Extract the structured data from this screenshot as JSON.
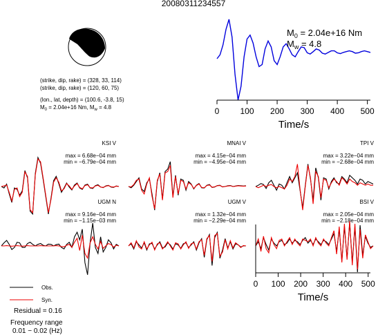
{
  "title": "20080311234557",
  "focal_info": {
    "line1": "(strike, dip, rake) = (328, 33, 114)",
    "line2": "(strike, dip, rake) = (120, 60, 75)",
    "line3": "(lon., lat, depth) = (100.6, -3.8, 15)",
    "m0_prefix": "M",
    "m0_sub": "0",
    "m0_value": " = 2.04e+16 Nm, M",
    "mw_sub": "w",
    "mw_value": " = 4.8"
  },
  "stf_labels": {
    "m0_prefix": "M",
    "m0_sub": "0",
    "m0_value": " = 2.04e+16 Nm",
    "mw_prefix": "M",
    "mw_sub": "w",
    "mw_value": " = 4.8"
  },
  "legend": {
    "obs": "Obs.",
    "syn": "Syn.",
    "residual": "Residual = 0.16",
    "freq_label": "Frequency range",
    "freq_value": "0.01 − 0.02 (Hz)"
  },
  "colors": {
    "observed": "#000000",
    "synthetic": "#ee0000",
    "source_time_function": "#0000dd",
    "beachball_fill": "#000000"
  },
  "chart_data": [
    {
      "type": "line",
      "title": "",
      "xlabel": "Time/s",
      "ylabel": "",
      "xlim": [
        0,
        510
      ],
      "x_ticks": [
        "0",
        "100",
        "200",
        "300",
        "400",
        "500"
      ],
      "grid": false,
      "series": [
        {
          "x": [
            0,
            10,
            20,
            30,
            40,
            50,
            60,
            70,
            80,
            90,
            100,
            110,
            120,
            130,
            140,
            150,
            160,
            170,
            180,
            190,
            200,
            210,
            220,
            230,
            240,
            250,
            260,
            270,
            280,
            290,
            300,
            310,
            320,
            330,
            340,
            350,
            360,
            370,
            380,
            390,
            400,
            410,
            420,
            430,
            440,
            450,
            460,
            470,
            480,
            490,
            500,
            510
          ],
          "values": [
            0.0,
            0.1,
            0.35,
            0.75,
            1.0,
            0.55,
            -0.4,
            -1.05,
            -0.7,
            0.05,
            0.5,
            0.6,
            0.4,
            0.05,
            -0.2,
            -0.15,
            0.25,
            0.45,
            0.3,
            -0.05,
            -0.15,
            0.05,
            0.3,
            0.38,
            0.25,
            0.1,
            0.05,
            0.18,
            0.3,
            0.28,
            0.15,
            0.12,
            0.18,
            0.25,
            0.22,
            0.14,
            0.12,
            0.16,
            0.2,
            0.2,
            0.15,
            0.13,
            0.16,
            0.18,
            0.2,
            0.18,
            0.14,
            0.15,
            0.18,
            0.2,
            0.18,
            0.16
          ]
        }
      ]
    },
    {
      "type": "line",
      "station": "KSI V",
      "max_label": "max = 6.68e−04 mm",
      "min_label": "min = −6.79e−04 mm",
      "series": [
        {
          "name": "Obs.",
          "values": [
            0.0,
            -0.05,
            0.08,
            -0.25,
            -0.55,
            -0.05,
            -0.1,
            -0.3,
            -0.15,
            0.55,
            0.3,
            -0.85,
            -0.95,
            0.45,
            1.0,
            0.8,
            0.25,
            -0.35,
            -0.95,
            -0.4,
            0.2,
            0.35,
            0.1,
            -0.2,
            -0.05,
            0.12,
            -0.02,
            -0.12,
            0.05,
            0.12,
            -0.05,
            -0.1,
            0.05,
            0.08,
            -0.05,
            -0.07,
            0.03,
            0.06,
            -0.02,
            -0.04,
            0.02,
            0.04,
            -0.02,
            -0.03,
            0.02,
            0.0
          ]
        },
        {
          "name": "Syn.",
          "values": [
            0.0,
            0.02,
            0.05,
            -0.2,
            -0.5,
            -0.1,
            -0.05,
            -0.35,
            -0.2,
            0.5,
            0.35,
            -0.8,
            -0.9,
            0.4,
            0.95,
            0.85,
            0.3,
            -0.3,
            -0.9,
            -0.45,
            0.15,
            0.3,
            0.15,
            -0.15,
            -0.08,
            0.1,
            0.02,
            -0.1,
            0.02,
            0.1,
            -0.03,
            -0.08,
            0.03,
            0.06,
            -0.04,
            -0.05,
            0.02,
            0.04,
            -0.02,
            -0.03,
            0.01,
            0.03,
            -0.01,
            -0.02,
            0.01,
            0.0
          ]
        }
      ]
    },
    {
      "type": "line",
      "station": "MNAI V",
      "max_label": "max = 4.15e−04 mm",
      "min_label": "min = −4.95e−04 mm",
      "series": [
        {
          "name": "Obs.",
          "values": [
            0.0,
            -0.05,
            0.05,
            0.2,
            0.35,
            -0.1,
            -0.2,
            0.15,
            0.3,
            -0.3,
            -0.95,
            0.2,
            0.55,
            -0.5,
            0.6,
            0.7,
            1.0,
            -0.4,
            0.45,
            -0.35,
            0.3,
            0.25,
            -0.15,
            0.2,
            0.1,
            -0.1,
            0.05,
            0.12,
            -0.05,
            -0.06,
            0.05,
            0.08,
            -0.04,
            -0.02,
            0.04,
            0.05,
            -0.02,
            0.0,
            0.03,
            0.04,
            0.0,
            0.02,
            0.04,
            0.03,
            0.02,
            0.03
          ]
        },
        {
          "name": "Syn.",
          "values": [
            0.0,
            -0.02,
            0.08,
            0.25,
            0.3,
            -0.15,
            -0.3,
            0.1,
            0.35,
            -0.4,
            -0.9,
            0.25,
            0.5,
            -0.55,
            0.55,
            0.6,
            0.85,
            -0.45,
            0.4,
            -0.3,
            0.25,
            0.2,
            -0.1,
            0.15,
            0.08,
            -0.08,
            0.04,
            0.1,
            -0.04,
            -0.05,
            0.04,
            0.06,
            -0.03,
            -0.01,
            0.03,
            0.04,
            -0.01,
            0.0,
            0.02,
            0.03,
            0.0,
            0.01,
            0.03,
            0.02,
            0.01,
            0.02
          ]
        }
      ]
    },
    {
      "type": "line",
      "station": "TPI V",
      "max_label": "max = 3.22e−04 mm",
      "min_label": "min = −2.68e−04 mm",
      "series": [
        {
          "name": "Obs.",
          "values": [
            0.0,
            0.05,
            0.12,
            0.08,
            -0.08,
            0.15,
            0.25,
            0.05,
            -0.15,
            0.1,
            0.05,
            -0.1,
            0.15,
            0.4,
            0.15,
            0.35,
            0.55,
            -0.15,
            -0.85,
            0.05,
            0.9,
            0.3,
            -0.55,
            0.75,
            0.35,
            -0.55,
            0.35,
            0.3,
            -0.1,
            0.2,
            0.35,
            0.15,
            0.1,
            0.4,
            0.3,
            0.15,
            0.45,
            0.35,
            0.25,
            0.1,
            0.3,
            0.25,
            0.1,
            0.2,
            0.15,
            0.1
          ]
        },
        {
          "name": "Syn.",
          "values": [
            0.0,
            -0.05,
            0.0,
            0.05,
            0.0,
            0.05,
            0.08,
            0.0,
            -0.05,
            0.0,
            -0.05,
            -0.1,
            0.05,
            0.3,
            0.2,
            0.4,
            0.9,
            -0.1,
            -0.95,
            0.0,
            0.85,
            0.35,
            -0.7,
            0.6,
            0.4,
            -0.45,
            0.3,
            0.25,
            -0.05,
            0.15,
            0.3,
            0.2,
            0.05,
            0.35,
            0.25,
            0.1,
            0.3,
            0.2,
            0.15,
            0.05,
            0.15,
            0.1,
            0.05,
            0.1,
            0.05,
            0.05
          ]
        }
      ]
    },
    {
      "type": "line",
      "station": "UGM N",
      "max_label": "max = 9.16e−04 mm",
      "min_label": "min = −1.15e−03 mm",
      "series": [
        {
          "name": "Obs.",
          "values": [
            0.0,
            0.1,
            0.18,
            0.05,
            -0.12,
            -0.05,
            0.12,
            0.1,
            -0.05,
            -0.05,
            0.08,
            0.12,
            0.05,
            0.0,
            0.05,
            0.08,
            0.02,
            0.0,
            0.06,
            0.05,
            0.0,
            0.04,
            0.06,
            -0.05,
            -0.1,
            0.05,
            0.12,
            -0.05,
            0.3,
            0.45,
            0.2,
            0.55,
            -0.55,
            -0.95,
            0.1,
            0.75,
            -0.05,
            -0.25,
            0.3,
            -0.2,
            -0.05,
            0.2,
            0.1,
            -0.1,
            0.05,
            0.0
          ]
        },
        {
          "name": "Syn.",
          "values": [
            0.0,
            0.0,
            0.01,
            0.0,
            -0.01,
            0.0,
            0.01,
            0.0,
            -0.01,
            0.0,
            0.01,
            0.0,
            0.0,
            0.0,
            0.0,
            0.01,
            0.0,
            0.0,
            0.0,
            0.0,
            0.0,
            0.01,
            0.0,
            -0.02,
            -0.03,
            0.02,
            0.05,
            -0.05,
            0.12,
            0.25,
            -0.15,
            0.35,
            -0.25,
            -0.4,
            0.1,
            0.3,
            0.05,
            -0.1,
            0.15,
            -0.08,
            0.0,
            0.08,
            0.04,
            -0.04,
            0.02,
            0.0
          ]
        }
      ]
    },
    {
      "type": "line",
      "station": "UGM V",
      "max_label": "max = 1.32e−04 mm",
      "min_label": "min = −2.29e−04 mm",
      "series": [
        {
          "name": "Obs.",
          "values": [
            0.0,
            0.1,
            -0.15,
            0.2,
            0.05,
            -0.1,
            0.15,
            -0.2,
            0.1,
            0.12,
            -0.15,
            0.05,
            0.2,
            -0.1,
            -0.05,
            0.15,
            0.05,
            -0.15,
            0.1,
            0.05,
            -0.12,
            0.1,
            0.15,
            -0.08,
            0.05,
            0.2,
            -0.2,
            0.15,
            0.35,
            -0.55,
            0.3,
            0.55,
            -0.95,
            0.4,
            0.65,
            -0.6,
            -0.2,
            0.35,
            -0.1,
            0.2,
            -0.15,
            0.1,
            0.05,
            -0.05,
            0.0,
            0.0
          ]
        },
        {
          "name": "Syn.",
          "values": [
            0.0,
            0.15,
            -0.1,
            0.25,
            -0.05,
            -0.15,
            0.2,
            -0.15,
            0.05,
            0.18,
            -0.2,
            0.1,
            0.15,
            -0.15,
            0.0,
            0.2,
            0.0,
            -0.2,
            0.15,
            0.1,
            -0.15,
            0.05,
            0.2,
            -0.12,
            0.1,
            0.15,
            -0.15,
            0.2,
            0.3,
            -0.45,
            0.35,
            0.5,
            -0.75,
            0.5,
            0.6,
            -0.5,
            -0.3,
            0.3,
            -0.15,
            0.25,
            -0.1,
            0.15,
            0.05,
            -0.08,
            0.02,
            0.0
          ]
        }
      ]
    },
    {
      "type": "line",
      "station": "BSI V",
      "max_label": "max = 2.05e−04 mm",
      "min_label": "min = −2.18e−04 mm",
      "xlabel": "Time/s",
      "xlim": [
        0,
        510
      ],
      "x_ticks": [
        "0",
        "100",
        "200",
        "300",
        "400",
        "500"
      ],
      "series": [
        {
          "name": "Obs.",
          "values": [
            0.0,
            0.15,
            -0.1,
            0.3,
            0.05,
            -0.15,
            0.25,
            0.1,
            0.0,
            0.15,
            0.2,
            0.05,
            0.1,
            0.25,
            0.1,
            0.2,
            0.15,
            0.05,
            0.2,
            0.3,
            0.1,
            0.2,
            0.05,
            0.25,
            0.15,
            0.05,
            0.2,
            0.15,
            0.05,
            0.25,
            0.45,
            -0.2,
            0.6,
            -0.55,
            0.7,
            -0.45,
            0.85,
            -0.6,
            0.7,
            -0.95,
            0.75,
            -0.35,
            0.35,
            0.1,
            -0.05,
            0.0
          ]
        },
        {
          "name": "Syn.",
          "values": [
            0.0,
            0.25,
            -0.2,
            0.35,
            -0.1,
            -0.25,
            0.3,
            0.05,
            -0.1,
            0.2,
            0.25,
            0.0,
            0.15,
            0.3,
            0.05,
            0.25,
            0.1,
            0.0,
            0.25,
            0.2,
            0.15,
            0.25,
            0.0,
            0.3,
            0.1,
            0.0,
            0.25,
            0.1,
            0.0,
            0.3,
            0.55,
            -0.3,
            0.7,
            -0.6,
            0.8,
            -0.5,
            0.9,
            -0.7,
            0.8,
            -0.85,
            0.6,
            -0.45,
            0.4,
            0.15,
            -0.1,
            0.0
          ]
        }
      ]
    }
  ]
}
